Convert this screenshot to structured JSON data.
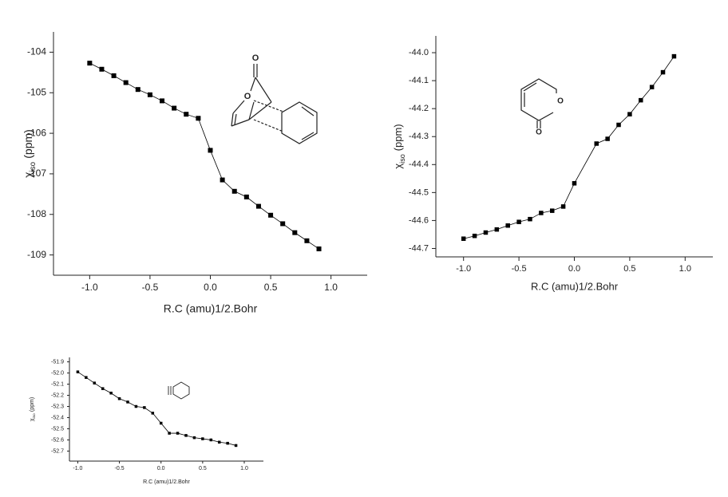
{
  "chart_data": [
    {
      "type": "line",
      "xlabel": "R.C (amu)1/2.Bohr",
      "ylabel": {
        "symbol": "χ",
        "subscript": "iso",
        "unit": "(ppm)"
      },
      "x": [
        -1.0,
        -0.9,
        -0.8,
        -0.7,
        -0.6,
        -0.5,
        -0.4,
        -0.3,
        -0.2,
        -0.1,
        0.0,
        0.1,
        0.2,
        0.3,
        0.4,
        0.5,
        0.6,
        0.7,
        0.8,
        0.9
      ],
      "values": [
        -104.27,
        -104.42,
        -104.58,
        -104.75,
        -104.92,
        -105.05,
        -105.2,
        -105.38,
        -105.53,
        -105.63,
        -106.42,
        -107.15,
        -107.43,
        -107.57,
        -107.8,
        -108.02,
        -108.23,
        -108.45,
        -108.65,
        -108.85
      ],
      "color": "#000000",
      "marker": "square",
      "xlim": [
        -1.3,
        1.3
      ],
      "xticks": [
        {
          "value": -1,
          "label": "-1.0"
        },
        {
          "value": -0.5,
          "label": "-0.5"
        },
        {
          "value": 0,
          "label": "0.0"
        },
        {
          "value": 0.5,
          "label": "0.5"
        },
        {
          "value": 1,
          "label": "1.0"
        }
      ],
      "ylim": [
        -109.5,
        -103.5
      ],
      "yticks": [
        -109,
        -108,
        -107,
        -106,
        -105,
        -104
      ],
      "structure_labels": [
        "O",
        "O"
      ]
    },
    {
      "type": "line",
      "xlabel": "R.C (amu)1/2.Bohr",
      "ylabel": {
        "symbol": "χ",
        "subscript": "iso",
        "unit": "(ppm)"
      },
      "x": [
        -1.0,
        -0.9,
        -0.8,
        -0.7,
        -0.6,
        -0.5,
        -0.4,
        -0.3,
        -0.2,
        -0.1,
        0.0,
        0.2,
        0.3,
        0.4,
        0.5,
        0.6,
        0.7,
        0.8,
        0.9
      ],
      "values": [
        -44.665,
        -44.655,
        -44.643,
        -44.632,
        -44.618,
        -44.605,
        -44.595,
        -44.573,
        -44.565,
        -44.55,
        -44.467,
        -44.325,
        -44.308,
        -44.258,
        -44.22,
        -44.17,
        -44.123,
        -44.07,
        -44.013
      ],
      "color": "#000000",
      "marker": "square",
      "xlim": [
        -1.25,
        1.25
      ],
      "xticks": [
        {
          "value": -1,
          "label": "-1.0"
        },
        {
          "value": -0.5,
          "label": "-0.5"
        },
        {
          "value": 0,
          "label": "0.0"
        },
        {
          "value": 0.5,
          "label": "0.5"
        },
        {
          "value": 1,
          "label": "1.0"
        }
      ],
      "ylim": [
        -44.73,
        -43.94
      ],
      "yticks": [
        -44.7,
        -44.6,
        -44.5,
        -44.4,
        -44.3,
        -44.2,
        -44.1,
        {
          "value": -44,
          "label": "-44.0"
        }
      ],
      "structure_labels": [
        "O",
        "O"
      ]
    },
    {
      "type": "line",
      "xlabel": "R.C (amu)1/2.Bohr",
      "ylabel": {
        "symbol": "χ",
        "subscript": "iso",
        "unit": "(ppm)"
      },
      "x": [
        -1.0,
        -0.9,
        -0.8,
        -0.7,
        -0.6,
        -0.5,
        -0.4,
        -0.3,
        -0.2,
        -0.1,
        0.0,
        0.1,
        0.2,
        0.3,
        0.4,
        0.5,
        0.6,
        0.7,
        0.8,
        0.9
      ],
      "values": [
        -51.99,
        -52.04,
        -52.09,
        -52.14,
        -52.18,
        -52.23,
        -52.26,
        -52.3,
        -52.31,
        -52.36,
        -52.45,
        -52.54,
        -52.54,
        -52.56,
        -52.58,
        -52.59,
        -52.6,
        -52.62,
        -52.63,
        -52.65
      ],
      "color": "#000000",
      "marker": "square",
      "xlim": [
        -1.1,
        1.23
      ],
      "xticks": [
        {
          "value": -1,
          "label": "-1.0"
        },
        {
          "value": -0.5,
          "label": "-0.5"
        },
        {
          "value": 0,
          "label": "0.0"
        },
        {
          "value": 0.5,
          "label": "0.5"
        },
        {
          "value": 1,
          "label": "1.0"
        }
      ],
      "ylim": [
        -52.79,
        -51.86
      ],
      "yticks": [
        -52.7,
        -52.6,
        -52.5,
        -52.4,
        -52.3,
        -52.2,
        -52.1,
        {
          "value": -52,
          "label": "-52.0"
        },
        -51.9
      ]
    }
  ]
}
